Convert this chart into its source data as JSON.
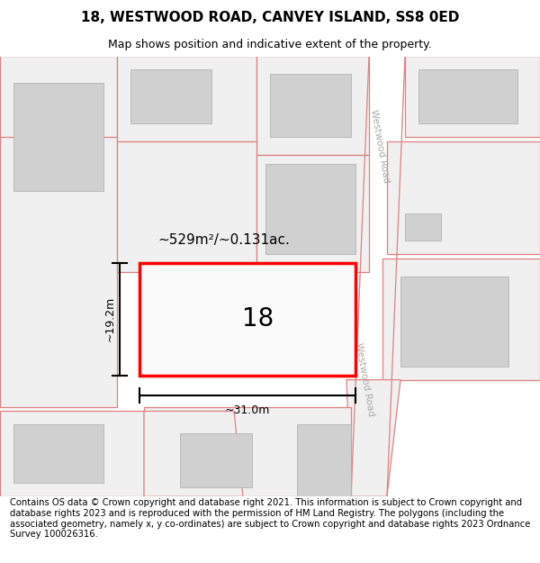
{
  "title": "18, WESTWOOD ROAD, CANVEY ISLAND, SS8 0ED",
  "subtitle": "Map shows position and indicative extent of the property.",
  "footer": "Contains OS data © Crown copyright and database right 2021. This information is subject to Crown copyright and database rights 2023 and is reproduced with the permission of HM Land Registry. The polygons (including the associated geometry, namely x, y co-ordinates) are subject to Crown copyright and database rights 2023 Ordnance Survey 100026316.",
  "area_label": "~529m²/~0.131ac.",
  "width_label": "~31.0m",
  "height_label": "~19.2m",
  "number_label": "18",
  "plot_outline_color": "#ff0000",
  "building_color": "#d0d0d0",
  "pink_line_color": "#e08080",
  "road_label": "Westwood Road",
  "map_bg": "#f5f5f5",
  "title_fontsize": 11,
  "subtitle_fontsize": 9,
  "footer_fontsize": 7.2,
  "road_text_color": "#aaaaaa"
}
